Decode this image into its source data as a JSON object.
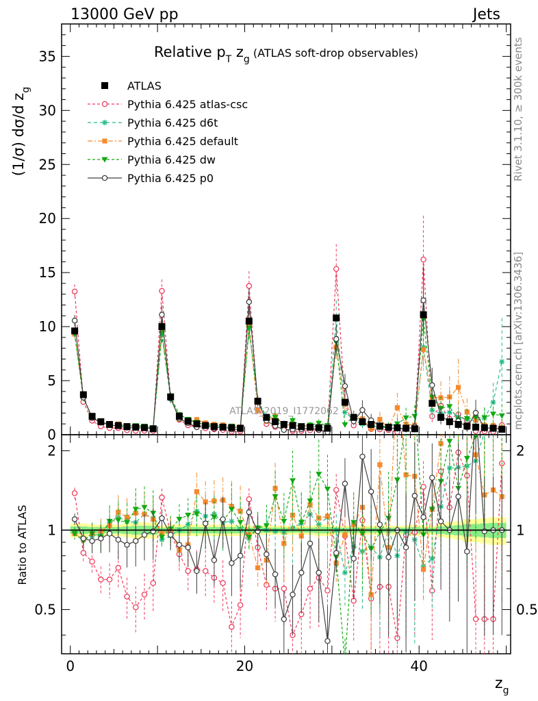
{
  "header": {
    "left": "13000 GeV pp",
    "right": "Jets"
  },
  "side_labels": {
    "rivet": "Rivet 3.1.10, ≥ 300k events",
    "mcplots": "mcplots.cern.ch [arXiv:1306.3436]"
  },
  "watermark": "ATLAS_2019_I1772062",
  "chart_data": {
    "type": "scatter",
    "title_main": "Relative p",
    "title_sub": "T",
    "title_zg": " z",
    "title_zg_sub": "g",
    "title_rest": " (ATLAS soft-drop observables)",
    "ylabel": "(1/σ) dσ/d z",
    "ylabel_sub": "g",
    "xlabel": "z",
    "xlabel_sub": "g",
    "ratio_ylabel": "Ratio to ATLAS",
    "xlim": [
      -1,
      50.5
    ],
    "ylim": [
      0,
      38
    ],
    "ratio_ylim": [
      0.34,
      2.3
    ],
    "xticks": [
      "0",
      "20",
      "40"
    ],
    "yticks": [
      "0",
      "5",
      "10",
      "15",
      "20",
      "25",
      "30",
      "35"
    ],
    "ratio_yticks": [
      "0.5",
      "1",
      "2"
    ],
    "x": [
      0.5,
      1.5,
      2.5,
      3.5,
      4.5,
      5.5,
      6.5,
      7.5,
      8.5,
      9.5,
      10.5,
      11.5,
      12.5,
      13.5,
      14.5,
      15.5,
      16.5,
      17.5,
      18.5,
      19.5,
      20.5,
      21.5,
      22.5,
      23.5,
      24.5,
      25.5,
      26.5,
      27.5,
      28.5,
      29.5,
      30.5,
      31.5,
      32.5,
      33.5,
      34.5,
      35.5,
      36.5,
      37.5,
      38.5,
      39.5,
      40.5,
      41.5,
      42.5,
      43.5,
      44.5,
      45.5,
      46.5,
      47.5,
      48.5,
      49.5
    ],
    "atlas": [
      9.6,
      3.7,
      1.7,
      1.2,
      0.95,
      0.85,
      0.75,
      0.7,
      0.65,
      0.55,
      10.0,
      3.5,
      1.7,
      1.25,
      1.0,
      0.85,
      0.75,
      0.7,
      0.65,
      0.6,
      10.5,
      3.1,
      1.6,
      1.2,
      0.95,
      0.85,
      0.75,
      0.7,
      0.65,
      0.6,
      10.8,
      3.0,
      1.6,
      1.2,
      0.95,
      0.8,
      0.7,
      0.65,
      0.6,
      0.55,
      11.1,
      2.9,
      1.6,
      1.2,
      0.95,
      0.8,
      0.7,
      0.65,
      0.6,
      0.5
    ],
    "series": [
      {
        "name": "Pythia 6.425 atlas-csc",
        "ratio": [
          1.38,
          0.82,
          0.76,
          0.65,
          0.65,
          0.72,
          0.56,
          0.51,
          0.57,
          0.63,
          1.33,
          0.98,
          0.81,
          0.7,
          0.71,
          0.7,
          0.66,
          0.63,
          0.43,
          0.52,
          1.31,
          0.86,
          0.62,
          0.6,
          0.6,
          0.4,
          0.48,
          0.6,
          0.66,
          0.59,
          1.42,
          0.95,
          0.54,
          1.09,
          0.55,
          0.61,
          0.61,
          0.39,
          0.96,
          0.98,
          1.46,
          0.59,
          1.67,
          1.22,
          1.97,
          1.61,
          0.46,
          0.46,
          0.46,
          1.79
        ]
      },
      {
        "name": "Pythia 6.425 d6t",
        "ratio": [
          0.98,
          0.92,
          0.95,
          0.97,
          1.07,
          1.12,
          1.08,
          1.07,
          1.15,
          1.11,
          0.92,
          0.95,
          1.0,
          1.05,
          1.18,
          1.13,
          1.15,
          1.07,
          1.08,
          1.01,
          0.93,
          1.02,
          1.0,
          0.99,
          0.98,
          1.02,
          1.06,
          1.15,
          1.05,
          1.12,
          1.0,
          0.69,
          0.87,
          0.83,
          0.86,
          0.79,
          1.0,
          0.8,
          0.99,
          0.92,
          0.73,
          0.78,
          1.23,
          1.72,
          1.73,
          1.75,
          1.83,
          2.36,
          5.0,
          13.5
        ]
      },
      {
        "name": "Pythia 6.425 default",
        "ratio": [
          0.97,
          0.92,
          0.97,
          0.99,
          1.04,
          1.17,
          1.12,
          1.16,
          1.15,
          1.1,
          0.97,
          1.01,
          0.84,
          0.88,
          1.4,
          1.28,
          1.29,
          1.3,
          1.23,
          1.18,
          0.96,
          0.72,
          0.77,
          1.44,
          0.89,
          1.14,
          0.95,
          1.25,
          1.11,
          1.13,
          0.75,
          0.96,
          1.05,
          1.22,
          0.57,
          1.77,
          0.86,
          3.85,
          1.62,
          1.6,
          0.71,
          1.2,
          2.13,
          2.91,
          4.61,
          2.63,
          1.93,
          1.36,
          1.42,
          1.34
        ]
      },
      {
        "name": "Pythia 6.425 dw",
        "ratio": [
          0.97,
          0.91,
          0.97,
          0.94,
          1.08,
          1.09,
          1.07,
          1.2,
          1.22,
          1.16,
          0.94,
          1.01,
          1.1,
          1.14,
          1.15,
          1.06,
          1.12,
          1.08,
          1.2,
          1.07,
          0.94,
          1.02,
          1.04,
          1.34,
          1.08,
          1.54,
          1.07,
          1.29,
          1.63,
          1.43,
          0.79,
          0.31,
          1.07,
          0.97,
          0.85,
          0.98,
          1.11,
          1.55,
          2.6,
          3.11,
          0.96,
          1.2,
          1.53,
          2.17,
          1.44,
          1.87,
          2.27,
          2.43,
          3.18,
          3.5
        ]
      },
      {
        "name": "Pythia 6.425 p0",
        "ratio": [
          1.1,
          0.93,
          0.91,
          0.93,
          0.97,
          0.92,
          0.88,
          0.91,
          0.96,
          0.99,
          1.11,
          0.96,
          0.88,
          0.86,
          0.7,
          1.06,
          0.77,
          1.1,
          0.75,
          0.8,
          1.17,
          0.99,
          0.81,
          0.68,
          0.46,
          0.57,
          0.69,
          0.89,
          0.69,
          0.38,
          0.82,
          1.5,
          0.78,
          1.9,
          1.4,
          1.05,
          0.79,
          1.0,
          0.86,
          1.35,
          1.12,
          1.58,
          1.08,
          1.0,
          1.34,
          0.83,
          2.89,
          0.99,
          1.0,
          1.0
        ]
      }
    ]
  }
}
